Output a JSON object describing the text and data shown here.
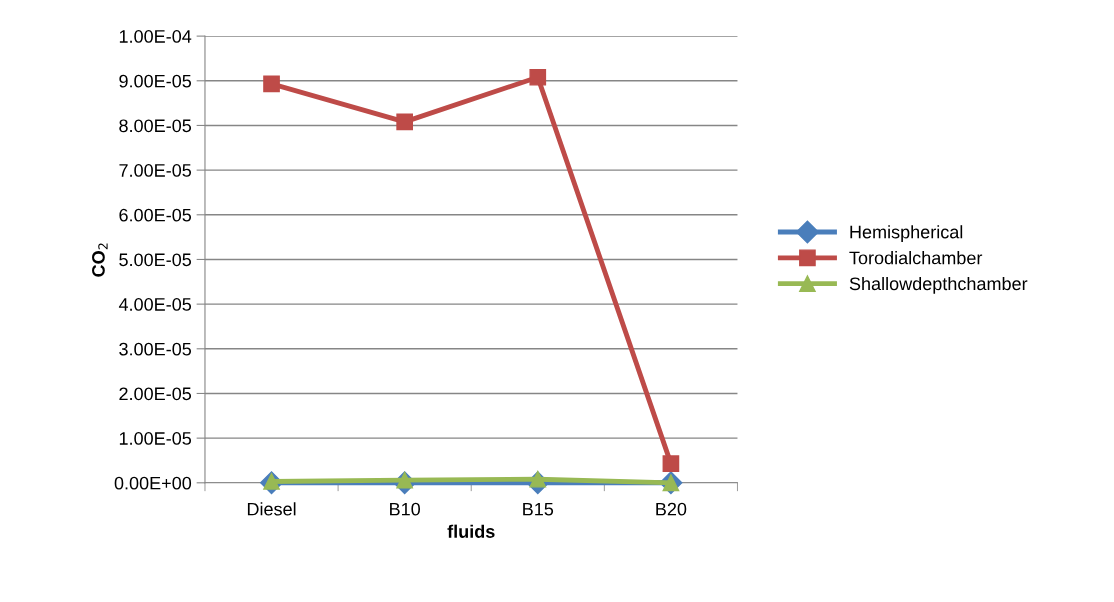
{
  "chart_data": {
    "type": "line",
    "xlabel": "fluids",
    "ylabel": "CO$_{2}$",
    "categories": [
      "Diesel",
      "B10",
      "B15",
      "B20"
    ],
    "series": [
      {
        "name": "Hemispherical",
        "color": "#4a7ebb",
        "values": [
          0,
          0,
          0,
          0
        ],
        "marker": "diamond"
      },
      {
        "name": "Torodialchamber",
        "color": "#be4b48",
        "values": [
          8.93e-05,
          8.08e-05,
          9.08e-05,
          4.3e-06
        ],
        "marker": "square"
      },
      {
        "name": "Shallowdepthchamber",
        "color": "#98b954",
        "values": [
          3e-07,
          6e-07,
          8e-07,
          0
        ],
        "marker": "triangle"
      }
    ],
    "ylim": [
      0,
      0.0001
    ],
    "yticks": [
      {
        "value": 0,
        "label": "0.00E+00"
      },
      {
        "value": 1e-05,
        "label": "1.00E-05"
      },
      {
        "value": 2e-05,
        "label": "2.00E-05"
      },
      {
        "value": 3e-05,
        "label": "3.00E-05"
      },
      {
        "value": 4e-05,
        "label": "4.00E-05"
      },
      {
        "value": 5e-05,
        "label": "5.00E-05"
      },
      {
        "value": 6e-05,
        "label": "6.00E-05"
      },
      {
        "value": 7e-05,
        "label": "7.00E-05"
      },
      {
        "value": 8e-05,
        "label": "8.00E-05"
      },
      {
        "value": 9e-05,
        "label": "9.00E-05"
      },
      {
        "value": 0.0001,
        "label": "1.00E-04"
      }
    ],
    "grid": "y",
    "legend": "right",
    "line_style": "solid"
  }
}
